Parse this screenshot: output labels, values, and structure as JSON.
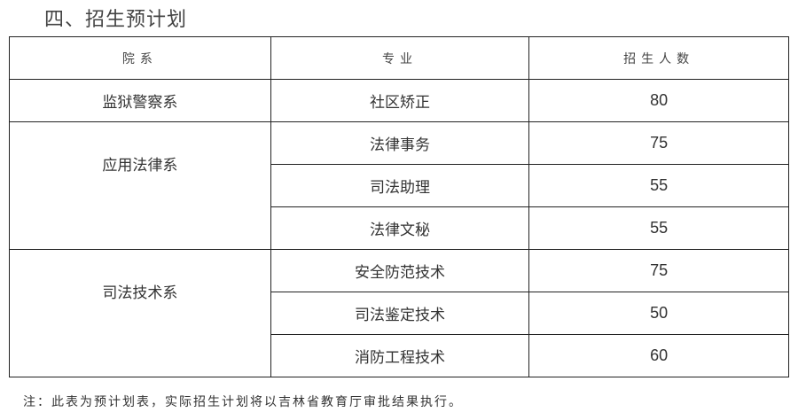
{
  "title": "四、招生预计划",
  "table": {
    "headers": [
      "院系",
      "专业",
      "招生人数"
    ],
    "groups": [
      {
        "department": "监狱警察系",
        "rows": [
          {
            "major": "社区矫正",
            "count": "80"
          }
        ]
      },
      {
        "department": "应用法律系",
        "rows": [
          {
            "major": "法律事务",
            "count": "75"
          },
          {
            "major": "司法助理",
            "count": "55"
          },
          {
            "major": "法律文秘",
            "count": "55"
          }
        ]
      },
      {
        "department": "司法技术系",
        "rows": [
          {
            "major": "安全防范技术",
            "count": "75"
          },
          {
            "major": "司法鉴定技术",
            "count": "50"
          },
          {
            "major": "消防工程技术",
            "count": "60"
          }
        ]
      }
    ]
  },
  "note": "注：此表为预计划表，实际招生计划将以吉林省教育厅审批结果执行。"
}
